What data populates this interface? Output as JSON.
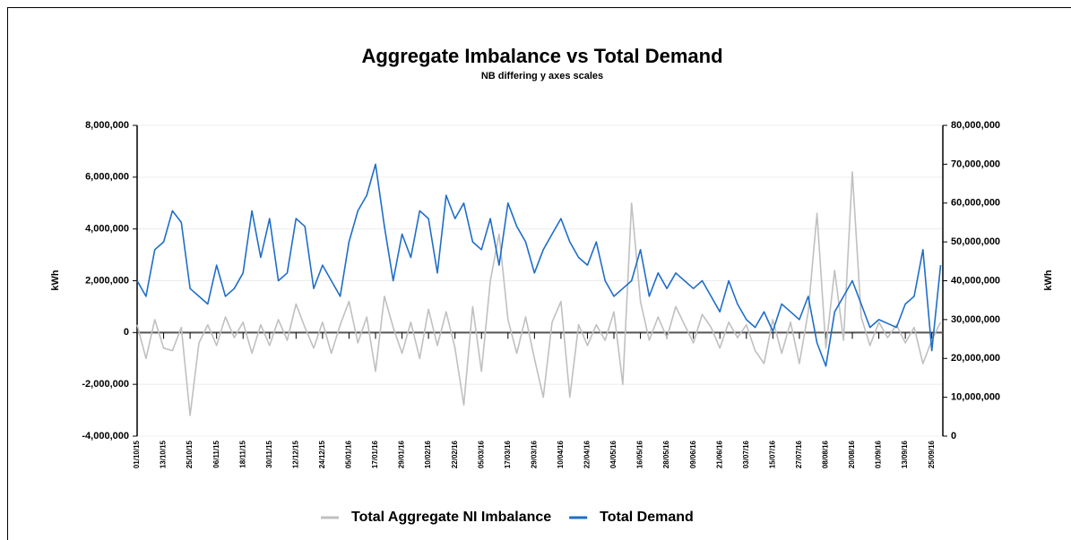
{
  "chart_data": {
    "type": "line",
    "title": "Aggregate Imbalance vs Total Demand",
    "subtitle": "NB differing y axes scales",
    "ylabel": "kWh",
    "y2label": "kWh",
    "x": [
      "01/10/15",
      "05/10/15",
      "09/10/15",
      "13/10/15",
      "17/10/15",
      "21/10/15",
      "25/10/15",
      "29/10/15",
      "02/11/15",
      "06/11/15",
      "10/11/15",
      "14/11/15",
      "18/11/15",
      "22/11/15",
      "26/11/15",
      "30/11/15",
      "04/12/15",
      "08/12/15",
      "12/12/15",
      "16/12/15",
      "20/12/15",
      "24/12/15",
      "28/12/15",
      "01/01/16",
      "05/01/16",
      "09/01/16",
      "13/01/16",
      "17/01/16",
      "21/01/16",
      "25/01/16",
      "29/01/16",
      "02/02/16",
      "06/02/16",
      "10/02/16",
      "14/02/16",
      "18/02/16",
      "22/02/16",
      "26/02/16",
      "01/03/16",
      "05/03/16",
      "09/03/16",
      "13/03/16",
      "17/03/16",
      "21/03/16",
      "25/03/16",
      "29/03/16",
      "02/04/16",
      "06/04/16",
      "10/04/16",
      "14/04/16",
      "18/04/16",
      "22/04/16",
      "26/04/16",
      "30/04/16",
      "04/05/16",
      "08/05/16",
      "12/05/16",
      "16/05/16",
      "20/05/16",
      "24/05/16",
      "28/05/16",
      "01/06/16",
      "05/06/16",
      "09/06/16",
      "13/06/16",
      "17/06/16",
      "21/06/16",
      "25/06/16",
      "29/06/16",
      "03/07/16",
      "07/07/16",
      "11/07/16",
      "15/07/16",
      "19/07/16",
      "23/07/16",
      "27/07/16",
      "31/07/16",
      "04/08/16",
      "08/08/16",
      "12/08/16",
      "16/08/16",
      "20/08/16",
      "24/08/16",
      "28/08/16",
      "01/09/16",
      "05/09/16",
      "09/09/16",
      "13/09/16",
      "17/09/16",
      "21/09/16",
      "25/09/16",
      "29/09/16"
    ],
    "series": [
      {
        "name": "Total Aggregate NI Imbalance",
        "color": "#c0c0c0",
        "values": [
          300000,
          -1000000,
          500000,
          -600000,
          -700000,
          200000,
          -3200000,
          -400000,
          300000,
          -500000,
          600000,
          -200000,
          400000,
          -800000,
          300000,
          -500000,
          500000,
          -300000,
          1100000,
          200000,
          -600000,
          400000,
          -800000,
          300000,
          1200000,
          -400000,
          600000,
          -1500000,
          1400000,
          200000,
          -800000,
          400000,
          -1000000,
          900000,
          -500000,
          800000,
          -600000,
          -2800000,
          1000000,
          -1500000,
          2000000,
          3800000,
          500000,
          -800000,
          600000,
          -1000000,
          -2500000,
          400000,
          1200000,
          -2500000,
          300000,
          -500000,
          300000,
          -300000,
          800000,
          -2000000,
          5000000,
          1200000,
          -300000,
          600000,
          -200000,
          1000000,
          300000,
          -400000,
          700000,
          200000,
          -600000,
          400000,
          -200000,
          300000,
          -700000,
          -1200000,
          500000,
          -800000,
          400000,
          -1200000,
          800000,
          4600000,
          -600000,
          2400000,
          -300000,
          6200000,
          600000,
          -500000,
          400000,
          -200000,
          300000,
          -400000,
          200000,
          -1200000,
          -300000,
          400000
        ]
      },
      {
        "name": "Total Demand",
        "color": "#1f6ec9",
        "axis": "y2",
        "values": [
          40000000,
          36000000,
          48000000,
          50000000,
          58000000,
          55000000,
          38000000,
          36000000,
          34000000,
          44000000,
          36000000,
          38000000,
          42000000,
          58000000,
          46000000,
          56000000,
          40000000,
          42000000,
          56000000,
          54000000,
          38000000,
          44000000,
          40000000,
          36000000,
          50000000,
          58000000,
          62000000,
          70000000,
          54000000,
          40000000,
          52000000,
          46000000,
          58000000,
          56000000,
          42000000,
          62000000,
          56000000,
          60000000,
          50000000,
          48000000,
          56000000,
          44000000,
          60000000,
          54000000,
          50000000,
          42000000,
          48000000,
          52000000,
          56000000,
          50000000,
          46000000,
          44000000,
          50000000,
          40000000,
          36000000,
          38000000,
          40000000,
          48000000,
          36000000,
          42000000,
          38000000,
          42000000,
          40000000,
          38000000,
          40000000,
          36000000,
          32000000,
          40000000,
          34000000,
          30000000,
          28000000,
          32000000,
          27000000,
          34000000,
          32000000,
          30000000,
          36000000,
          24000000,
          18000000,
          32000000,
          36000000,
          40000000,
          34000000,
          28000000,
          30000000,
          29000000,
          28000000,
          34000000,
          36000000,
          48000000,
          22000000,
          44000000
        ]
      }
    ],
    "xlim": [
      "01/10/15",
      "30/09/16"
    ],
    "xticks": [
      "01/10/15",
      "13/10/15",
      "25/10/15",
      "06/11/15",
      "18/11/15",
      "30/11/15",
      "12/12/15",
      "24/12/15",
      "05/01/16",
      "17/01/16",
      "29/01/16",
      "10/02/16",
      "22/02/16",
      "05/03/16",
      "17/03/16",
      "29/03/16",
      "10/04/16",
      "22/04/16",
      "04/05/16",
      "16/05/16",
      "28/05/16",
      "09/06/16",
      "21/06/16",
      "03/07/16",
      "15/07/16",
      "27/07/16",
      "08/08/16",
      "20/08/16",
      "01/09/16",
      "13/09/16",
      "25/09/16"
    ],
    "ylim": [
      -4000000,
      8000000
    ],
    "yticks": [
      {
        "value": -4000000,
        "label": "-4,000,000"
      },
      {
        "value": -2000000,
        "label": "-2,000,000"
      },
      0,
      {
        "value": 2000000,
        "label": "2,000,000"
      },
      {
        "value": 4000000,
        "label": "4,000,000"
      },
      {
        "value": 6000000,
        "label": "6,000,000"
      },
      {
        "value": 8000000,
        "label": "8,000,000"
      }
    ],
    "y2lim": [
      0,
      80000000
    ],
    "y2ticks": [
      0,
      {
        "value": 10000000,
        "label": "10,000,000"
      },
      {
        "value": 20000000,
        "label": "20,000,000"
      },
      {
        "value": 30000000,
        "label": "30,000,000"
      },
      {
        "value": 40000000,
        "label": "40,000,000"
      },
      {
        "value": 50000000,
        "label": "50,000,000"
      },
      {
        "value": 60000000,
        "label": "60,000,000"
      },
      {
        "value": 70000000,
        "label": "70,000,000"
      },
      {
        "value": 80000000,
        "label": "80,000,000"
      }
    ],
    "grid": true,
    "legend": "bottom"
  }
}
